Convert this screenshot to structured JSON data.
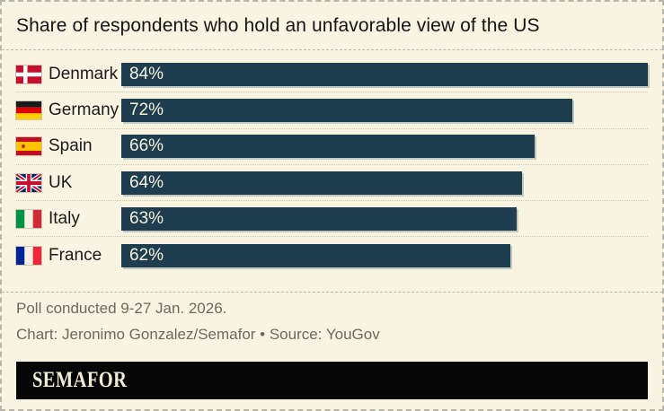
{
  "title": "Share of respondents who hold an unfavorable view of the US",
  "chart_data": {
    "type": "bar",
    "orientation": "horizontal",
    "title": "Share of respondents who hold an unfavorable view of the US",
    "categories": [
      "Denmark",
      "Germany",
      "Spain",
      "UK",
      "Italy",
      "France"
    ],
    "values": [
      84,
      72,
      66,
      64,
      63,
      62
    ],
    "value_labels": [
      "84%",
      "72%",
      "66%",
      "64%",
      "63%",
      "62%"
    ],
    "unit": "%",
    "xlim": [
      0,
      84
    ],
    "grid": false,
    "legend": "none",
    "bar_color": "#1e3d4e",
    "background_color": "#f9f4e1"
  },
  "rows": [
    {
      "country": "Denmark",
      "value": 84,
      "value_label": "84%",
      "flag_icon": "denmark-flag-icon"
    },
    {
      "country": "Germany",
      "value": 72,
      "value_label": "72%",
      "flag_icon": "germany-flag-icon"
    },
    {
      "country": "Spain",
      "value": 66,
      "value_label": "66%",
      "flag_icon": "spain-flag-icon"
    },
    {
      "country": "UK",
      "value": 64,
      "value_label": "64%",
      "flag_icon": "uk-flag-icon"
    },
    {
      "country": "Italy",
      "value": 63,
      "value_label": "63%",
      "flag_icon": "italy-flag-icon"
    },
    {
      "country": "France",
      "value": 62,
      "value_label": "62%",
      "flag_icon": "france-flag-icon"
    }
  ],
  "footer": {
    "note": "Poll conducted 9-27 Jan. 2026.",
    "credit": "Chart: Jeronimo Gonzalez/Semafor • Source: YouGov"
  },
  "brand": {
    "logo_text": "SEMAFOR"
  },
  "colors": {
    "background": "#f9f4e1",
    "bar": "#1e3d4e",
    "bar_text": "#f7f2df",
    "text": "#141414",
    "footer_text": "#6a6a5e",
    "logo_background": "#060606",
    "logo_text": "#f2ecd4"
  }
}
